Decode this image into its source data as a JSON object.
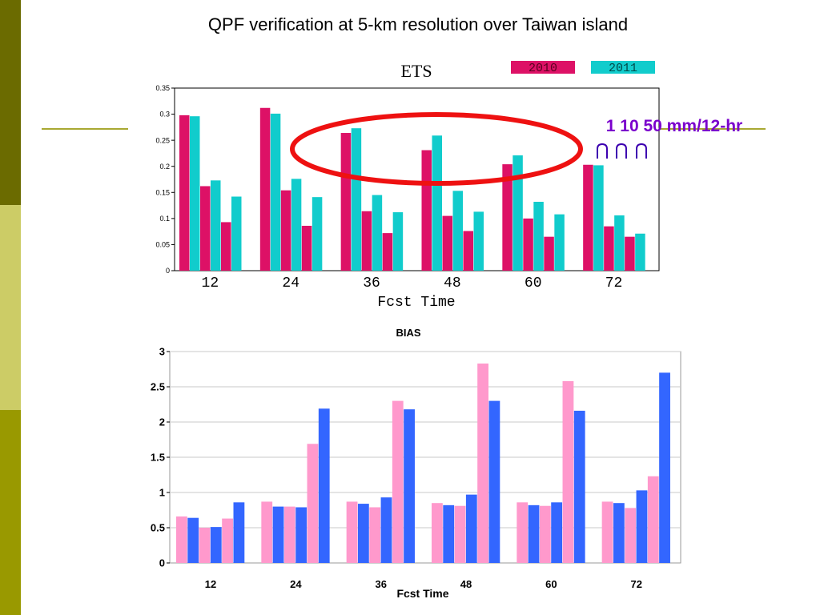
{
  "slide": {
    "title": "QPF verification at 5-km resolution over Taiwan island",
    "annotation": "1 10 50 mm/12-hr",
    "colors": {
      "sidebar_dark": "#6b6b00",
      "sidebar_light": "#cccc66",
      "sidebar_mid": "#999900",
      "rule": "#a8a832",
      "annotation_text": "#7a00cc",
      "highlight_ellipse": "#ee1111"
    }
  },
  "chart_data": [
    {
      "type": "bar",
      "title": "ETS",
      "xlabel": "Fcst Time",
      "ylabel": "",
      "categories": [
        "12",
        "24",
        "36",
        "48",
        "60",
        "72"
      ],
      "thresholds": [
        "1",
        "10",
        "50"
      ],
      "ylim": [
        0,
        0.35
      ],
      "yticks": [
        "0",
        "0.05",
        "0.1",
        "0.15",
        "0.2",
        "0.25",
        "0.3",
        "0.35"
      ],
      "legend_position": "top-right",
      "grid": false,
      "series": [
        {
          "name": "2010",
          "color": "#dd1166",
          "values": [
            [
              0.298,
              0.162,
              0.093
            ],
            [
              0.312,
              0.154,
              0.086
            ],
            [
              0.264,
              0.114,
              0.072
            ],
            [
              0.231,
              0.105,
              0.076
            ],
            [
              0.204,
              0.1,
              0.065
            ],
            [
              0.203,
              0.085,
              0.065
            ]
          ]
        },
        {
          "name": "2011",
          "color": "#11cccc",
          "values": [
            [
              0.296,
              0.173,
              0.142
            ],
            [
              0.301,
              0.176,
              0.141
            ],
            [
              0.273,
              0.145,
              0.112
            ],
            [
              0.259,
              0.153,
              0.113
            ],
            [
              0.221,
              0.132,
              0.108
            ],
            [
              0.202,
              0.106,
              0.071
            ]
          ]
        }
      ]
    },
    {
      "type": "bar",
      "title": "BIAS",
      "xlabel": "Fcst Time",
      "ylabel": "",
      "categories": [
        "12",
        "24",
        "36",
        "48",
        "60",
        "72"
      ],
      "ylim": [
        0,
        3
      ],
      "yticks": [
        "0",
        "0.5",
        "1",
        "1.5",
        "2",
        "2.5",
        "3"
      ],
      "grid": true,
      "series": [
        {
          "color": "#ff99cc",
          "values": [
            [
              0.66,
              0.5,
              0.63
            ],
            [
              0.87,
              0.8,
              1.69
            ],
            [
              0.87,
              0.79,
              2.3
            ],
            [
              0.85,
              0.81,
              2.83
            ],
            [
              0.86,
              0.81,
              2.58
            ],
            [
              0.87,
              0.78,
              1.23
            ]
          ]
        },
        {
          "color": "#3366ff",
          "values": [
            [
              0.64,
              0.51,
              0.86
            ],
            [
              0.8,
              0.79,
              2.19
            ],
            [
              0.84,
              0.93,
              2.18
            ],
            [
              0.82,
              0.97,
              2.3
            ],
            [
              0.82,
              0.86,
              2.16
            ],
            [
              0.85,
              1.03,
              2.7
            ]
          ]
        }
      ]
    }
  ]
}
